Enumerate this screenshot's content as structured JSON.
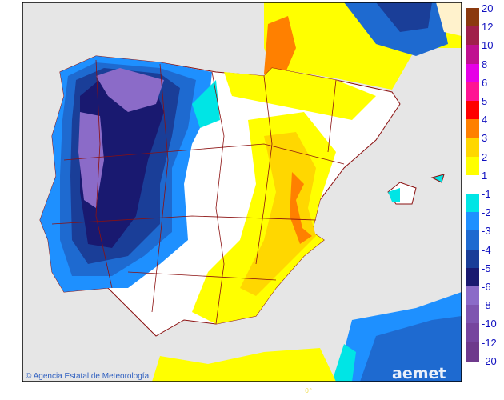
{
  "map": {
    "attribution": "Agencia Estatal de Meteorología",
    "copyright_symbol": "©",
    "logo_text": "aemet",
    "longitude_label": "0°",
    "colors": {
      "sea": "#e6e6e6",
      "no_data_land": "#fff2cc",
      "boundaries": "#8b1010"
    }
  },
  "legend": {
    "entries": [
      {
        "label": "20",
        "color": "#8b3a0f"
      },
      {
        "label": "12",
        "color": "#a0204a"
      },
      {
        "label": "10",
        "color": "#c01090"
      },
      {
        "label": "8",
        "color": "#e600e6"
      },
      {
        "label": "6",
        "color": "#ff1493"
      },
      {
        "label": "5",
        "color": "#ff0000"
      },
      {
        "label": "4",
        "color": "#ff8000"
      },
      {
        "label": "3",
        "color": "#ffd700"
      },
      {
        "label": "2",
        "color": "#ffff00"
      },
      {
        "label": "1",
        "color": "#ffffff"
      },
      {
        "label": "-1",
        "color": "#00e5e5"
      },
      {
        "label": "-2",
        "color": "#1e90ff"
      },
      {
        "label": "-3",
        "color": "#1e6ad0"
      },
      {
        "label": "-4",
        "color": "#1a3e98"
      },
      {
        "label": "-5",
        "color": "#191970"
      },
      {
        "label": "-6",
        "color": "#8b6bc8"
      },
      {
        "label": "-8",
        "color": "#7e55b0"
      },
      {
        "label": "-10",
        "color": "#76459e"
      },
      {
        "label": "-12",
        "color": "#6e3a8c"
      },
      {
        "label": "-20",
        "color": null
      }
    ]
  }
}
